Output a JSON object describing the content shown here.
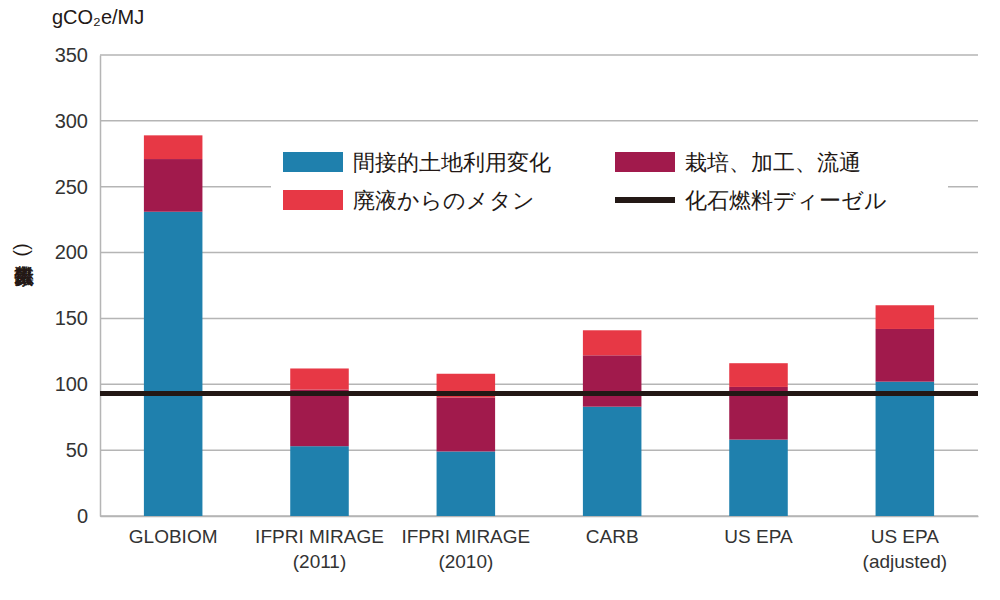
{
  "chart_data": {
    "type": "bar",
    "stacked": true,
    "grid": true,
    "legend": "top",
    "y_unit": "gCO₂e/MJ",
    "ylabel": "(炭素排出係数)",
    "categories": [
      "GLOBIOM",
      "IFPRI MIRAGE\n(2011)",
      "IFPRI MIRAGE\n(2010)",
      "CARB",
      "US EPA",
      "US EPA\n(adjusted)"
    ],
    "series": [
      {
        "name": "間接的土地利用変化",
        "color": "#1f80ad",
        "values": [
          231,
          53,
          49,
          83,
          58,
          102
        ]
      },
      {
        "name": "栽培、加工、流通",
        "color": "#a11a4c",
        "values": [
          40,
          43,
          41,
          39,
          40,
          40
        ]
      },
      {
        "name": "廃液からのメタン",
        "color": "#e73845",
        "values": [
          18,
          16,
          18,
          19,
          18,
          18
        ]
      }
    ],
    "reference_line": {
      "name": "化石燃料ディーゼル",
      "value": 93,
      "color": "#231815"
    },
    "ylim": [
      0,
      350
    ],
    "yticks": [
      0,
      50,
      100,
      150,
      200,
      250,
      300,
      350
    ]
  }
}
